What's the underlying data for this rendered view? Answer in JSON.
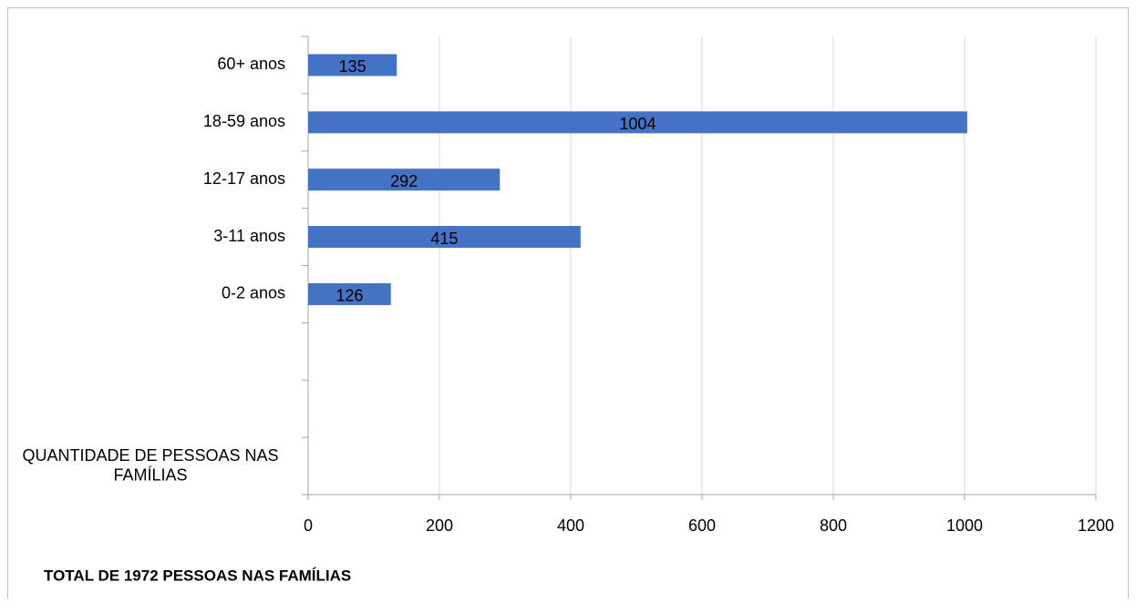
{
  "chart_data": {
    "type": "bar",
    "orientation": "horizontal",
    "categories": [
      "60+ anos",
      "18-59 anos",
      "12-17 anos",
      "3-11 anos",
      "0-2 anos",
      null,
      null,
      "QUANTIDADE DE PESSOAS NAS FAMÍLIAS"
    ],
    "values": [
      135,
      1004,
      292,
      415,
      126,
      null,
      null,
      null
    ],
    "color": "#4472c4",
    "xlim": [
      0,
      1200
    ],
    "xticks": [
      0,
      200,
      400,
      600,
      800,
      1000,
      1200
    ],
    "grid": true,
    "annotation": "TOTAL DE 1972 PESSOAS NAS FAMÍLIAS"
  }
}
